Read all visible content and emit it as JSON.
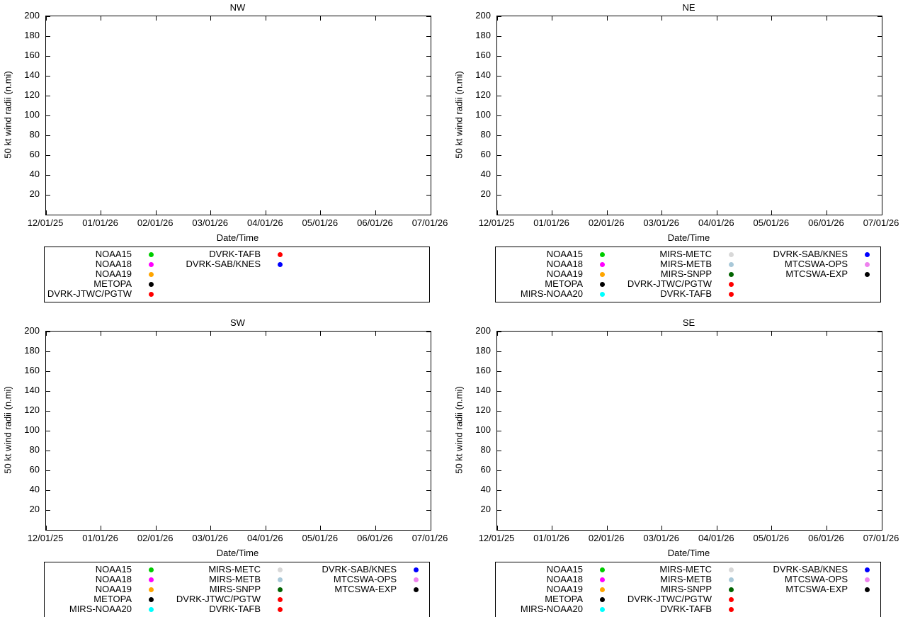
{
  "page": {
    "background": "#ffffff",
    "text_color": "#000000"
  },
  "chart_data": [
    {
      "type": "scatter",
      "title": "NW",
      "xlabel": "Date/Time",
      "ylabel": "50 kt wind radii (n.mi)",
      "ylim": [
        0,
        200
      ],
      "yticks": [
        20,
        40,
        60,
        80,
        100,
        120,
        140,
        160,
        180,
        200
      ],
      "xticklabels": [
        "12/01/25",
        "01/01/26",
        "02/01/26",
        "03/01/26",
        "04/01/26",
        "05/01/26",
        "06/01/26",
        "07/01/26"
      ],
      "grid": false,
      "series": [],
      "legend": {
        "position": "below",
        "columns": [
          [
            {
              "label": "NOAA15",
              "color": "#00cc00"
            },
            {
              "label": "NOAA18",
              "color": "#ff00ff"
            },
            {
              "label": "NOAA19",
              "color": "#ffa500"
            },
            {
              "label": "METOPA",
              "color": "#000000"
            },
            {
              "label": "DVRK-JTWC/PGTW",
              "color": "#ff0000"
            }
          ],
          [
            {
              "label": "DVRK-TAFB",
              "color": "#ff0000"
            },
            {
              "label": "DVRK-SAB/KNES",
              "color": "#0000ff"
            }
          ]
        ]
      }
    },
    {
      "type": "scatter",
      "title": "NE",
      "xlabel": "Date/Time",
      "ylabel": "50 kt wind radii (n.mi)",
      "ylim": [
        0,
        200
      ],
      "yticks": [
        20,
        40,
        60,
        80,
        100,
        120,
        140,
        160,
        180,
        200
      ],
      "xticklabels": [
        "12/01/25",
        "01/01/26",
        "02/01/26",
        "03/01/26",
        "04/01/26",
        "05/01/26",
        "06/01/26",
        "07/01/26"
      ],
      "grid": false,
      "series": [],
      "legend": {
        "position": "below",
        "columns": [
          [
            {
              "label": "NOAA15",
              "color": "#00cc00"
            },
            {
              "label": "NOAA18",
              "color": "#ff00ff"
            },
            {
              "label": "NOAA19",
              "color": "#ffa500"
            },
            {
              "label": "METOPA",
              "color": "#000000"
            },
            {
              "label": "MIRS-NOAA20",
              "color": "#00ffff"
            }
          ],
          [
            {
              "label": "MIRS-METC",
              "color": "#d8d8d8"
            },
            {
              "label": "MIRS-METB",
              "color": "#a8c8d8"
            },
            {
              "label": "MIRS-SNPP",
              "color": "#006400"
            },
            {
              "label": "DVRK-JTWC/PGTW",
              "color": "#ff0000"
            },
            {
              "label": "DVRK-TAFB",
              "color": "#ff0000"
            }
          ],
          [
            {
              "label": "DVRK-SAB/KNES",
              "color": "#0000ff"
            },
            {
              "label": "MTCSWA-OPS",
              "color": "#ee82ee"
            },
            {
              "label": "MTCSWA-EXP",
              "color": "#000000"
            }
          ]
        ]
      }
    },
    {
      "type": "scatter",
      "title": "SW",
      "xlabel": "Date/Time",
      "ylabel": "50 kt wind radii (n.mi)",
      "ylim": [
        0,
        200
      ],
      "yticks": [
        20,
        40,
        60,
        80,
        100,
        120,
        140,
        160,
        180,
        200
      ],
      "xticklabels": [
        "12/01/25",
        "01/01/26",
        "02/01/26",
        "03/01/26",
        "04/01/26",
        "05/01/26",
        "06/01/26",
        "07/01/26"
      ],
      "grid": false,
      "series": [],
      "legend": {
        "position": "below",
        "columns": [
          [
            {
              "label": "NOAA15",
              "color": "#00cc00"
            },
            {
              "label": "NOAA18",
              "color": "#ff00ff"
            },
            {
              "label": "NOAA19",
              "color": "#ffa500"
            },
            {
              "label": "METOPA",
              "color": "#000000"
            },
            {
              "label": "MIRS-NOAA20",
              "color": "#00ffff"
            }
          ],
          [
            {
              "label": "MIRS-METC",
              "color": "#d8d8d8"
            },
            {
              "label": "MIRS-METB",
              "color": "#a8c8d8"
            },
            {
              "label": "MIRS-SNPP",
              "color": "#006400"
            },
            {
              "label": "DVRK-JTWC/PGTW",
              "color": "#ff0000"
            },
            {
              "label": "DVRK-TAFB",
              "color": "#ff0000"
            }
          ],
          [
            {
              "label": "DVRK-SAB/KNES",
              "color": "#0000ff"
            },
            {
              "label": "MTCSWA-OPS",
              "color": "#ee82ee"
            },
            {
              "label": "MTCSWA-EXP",
              "color": "#000000"
            }
          ]
        ]
      }
    },
    {
      "type": "scatter",
      "title": "SE",
      "xlabel": "Date/Time",
      "ylabel": "50 kt wind radii (n.mi)",
      "ylim": [
        0,
        200
      ],
      "yticks": [
        20,
        40,
        60,
        80,
        100,
        120,
        140,
        160,
        180,
        200
      ],
      "xticklabels": [
        "12/01/25",
        "01/01/26",
        "02/01/26",
        "03/01/26",
        "04/01/26",
        "05/01/26",
        "06/01/26",
        "07/01/26"
      ],
      "grid": false,
      "series": [],
      "legend": {
        "position": "below",
        "columns": [
          [
            {
              "label": "NOAA15",
              "color": "#00cc00"
            },
            {
              "label": "NOAA18",
              "color": "#ff00ff"
            },
            {
              "label": "NOAA19",
              "color": "#ffa500"
            },
            {
              "label": "METOPA",
              "color": "#000000"
            },
            {
              "label": "MIRS-NOAA20",
              "color": "#00ffff"
            }
          ],
          [
            {
              "label": "MIRS-METC",
              "color": "#d8d8d8"
            },
            {
              "label": "MIRS-METB",
              "color": "#a8c8d8"
            },
            {
              "label": "MIRS-SNPP",
              "color": "#006400"
            },
            {
              "label": "DVRK-JTWC/PGTW",
              "color": "#ff0000"
            },
            {
              "label": "DVRK-TAFB",
              "color": "#ff0000"
            }
          ],
          [
            {
              "label": "DVRK-SAB/KNES",
              "color": "#0000ff"
            },
            {
              "label": "MTCSWA-OPS",
              "color": "#ee82ee"
            },
            {
              "label": "MTCSWA-EXP",
              "color": "#000000"
            }
          ]
        ]
      }
    }
  ]
}
